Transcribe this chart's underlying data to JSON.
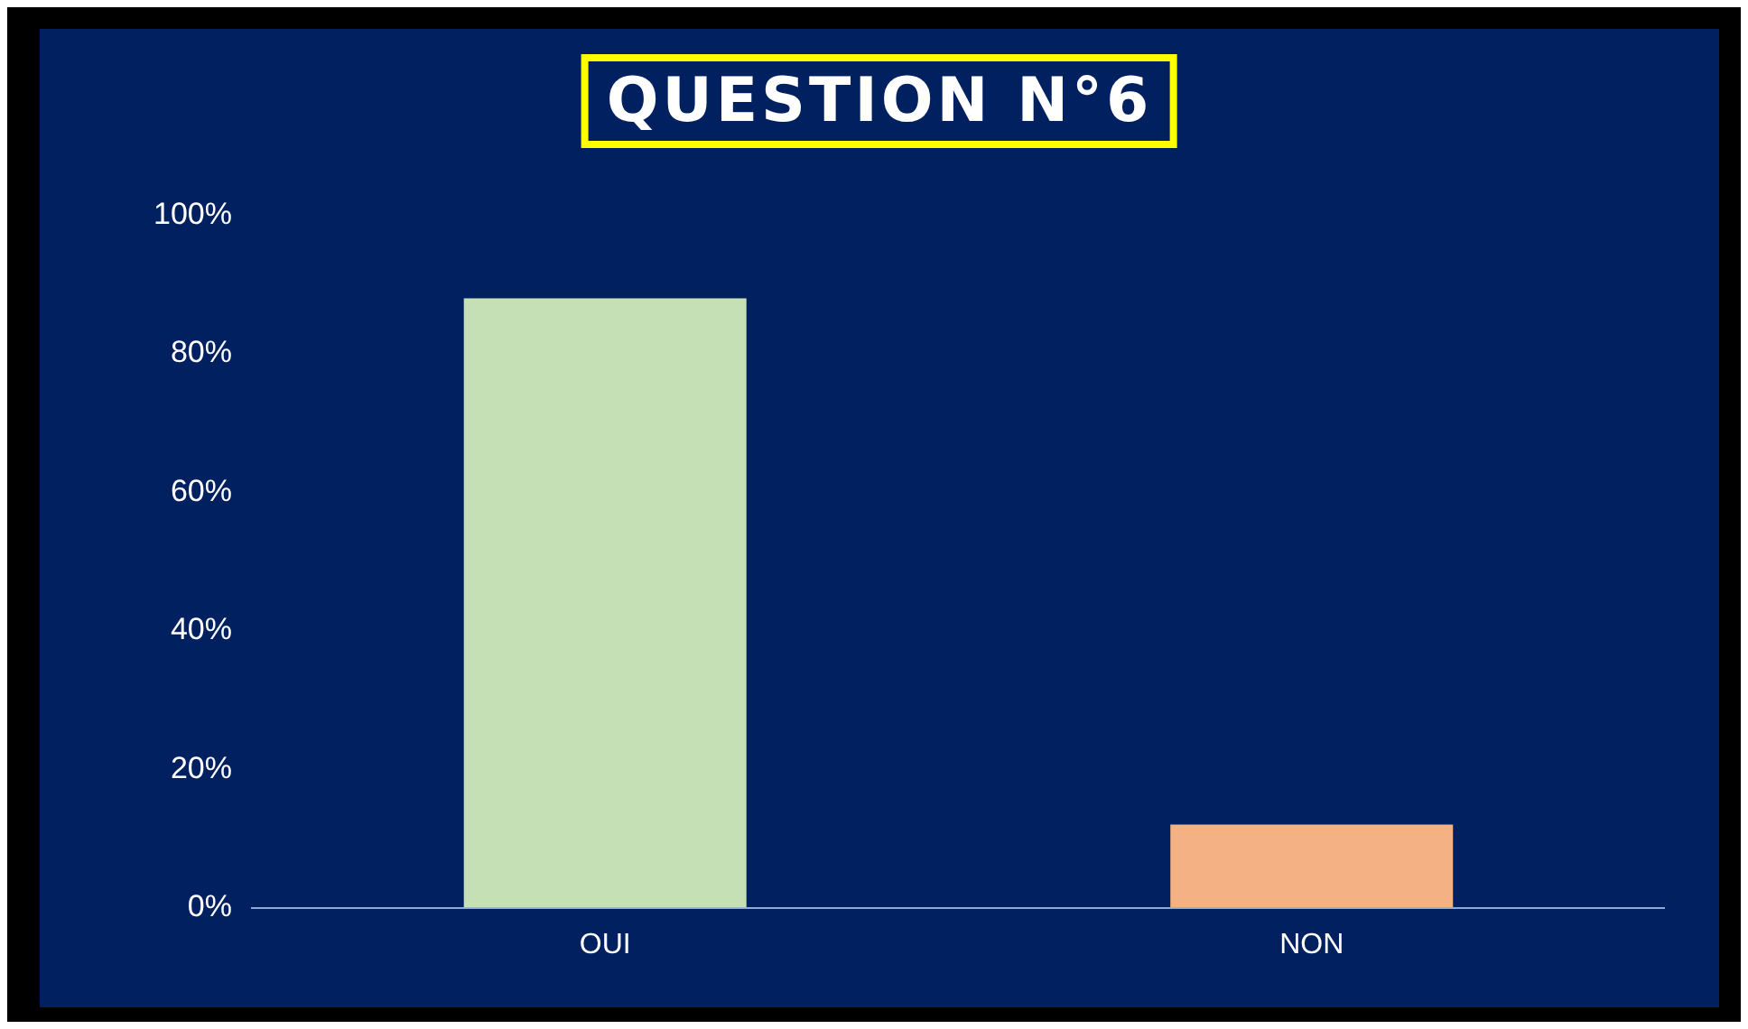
{
  "chart_data": {
    "type": "bar",
    "title": "QUESTION N°6",
    "categories": [
      "OUI",
      "NON"
    ],
    "values": [
      88,
      12
    ],
    "colors": [
      "#c5e0b4",
      "#f4b183"
    ],
    "ylim": [
      0,
      100
    ],
    "yticks": [
      {
        "value": 0,
        "label": "0%"
      },
      {
        "value": 20,
        "label": "20%"
      },
      {
        "value": 40,
        "label": "40%"
      },
      {
        "value": 60,
        "label": "60%"
      },
      {
        "value": 80,
        "label": "80%"
      },
      {
        "value": 100,
        "label": "100%"
      }
    ],
    "grid": false,
    "legend": false
  }
}
